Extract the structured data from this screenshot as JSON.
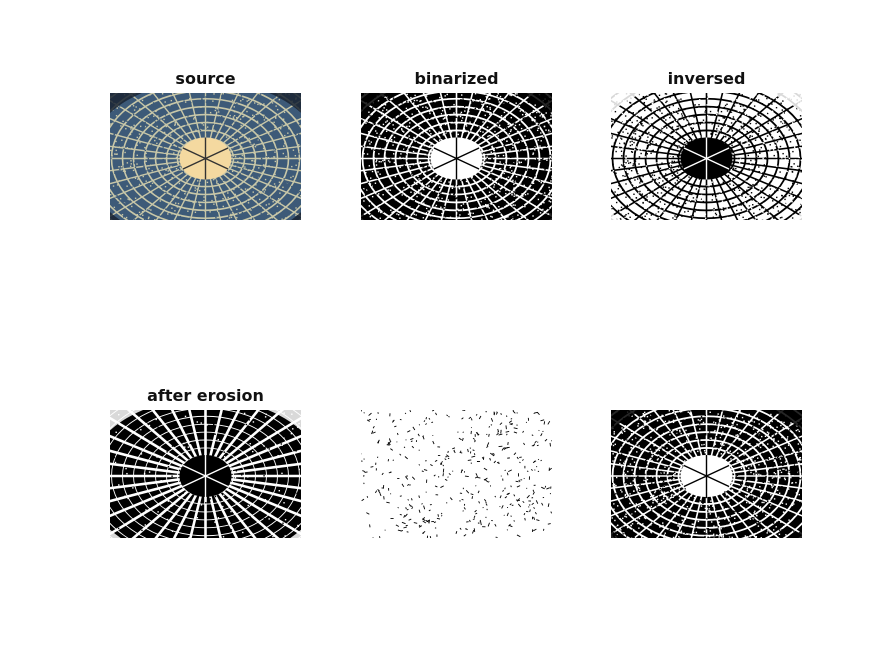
{
  "figure": {
    "panels": [
      {
        "id": "source",
        "title": "source",
        "kind": "color"
      },
      {
        "id": "binarized",
        "title": "binarized",
        "kind": "binary"
      },
      {
        "id": "inversed",
        "title": "inversed",
        "kind": "inverted"
      },
      {
        "id": "after-erosion",
        "title": "after erosion",
        "kind": "eroded"
      },
      {
        "id": "difference",
        "title": "",
        "kind": "sparse"
      },
      {
        "id": "result",
        "title": "",
        "kind": "binary"
      }
    ],
    "colors": {
      "background": "#ffffff",
      "black": "#000000",
      "white": "#ffffff",
      "dome_glass": "#3d5a78",
      "dome_frame": "#c8c7a8",
      "dome_center": "#f4d9a0"
    }
  }
}
